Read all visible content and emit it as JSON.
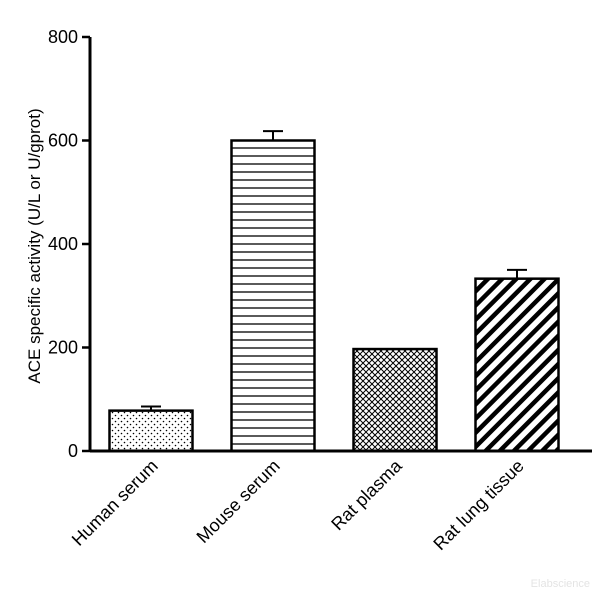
{
  "chart_data": {
    "type": "bar",
    "title": "",
    "xlabel": "",
    "ylabel": "ACE specific activity (U/L or U/gprot)",
    "categories": [
      "Human serum",
      "Mouse serum",
      "Rat plasma",
      "Rat lung tissue"
    ],
    "values": [
      78,
      600,
      197,
      333
    ],
    "errors": [
      8,
      18,
      0,
      17
    ],
    "patterns": [
      "dots",
      "horizontal-lines",
      "crosshatch",
      "diagonal-stripes"
    ],
    "ylim": [
      0,
      800
    ],
    "yticks": [
      0,
      200,
      400,
      600,
      800
    ],
    "grid": false,
    "legend": "none",
    "bar_fill": "#ffffff",
    "bar_stroke": "#000000"
  },
  "watermark": "Elabscience"
}
